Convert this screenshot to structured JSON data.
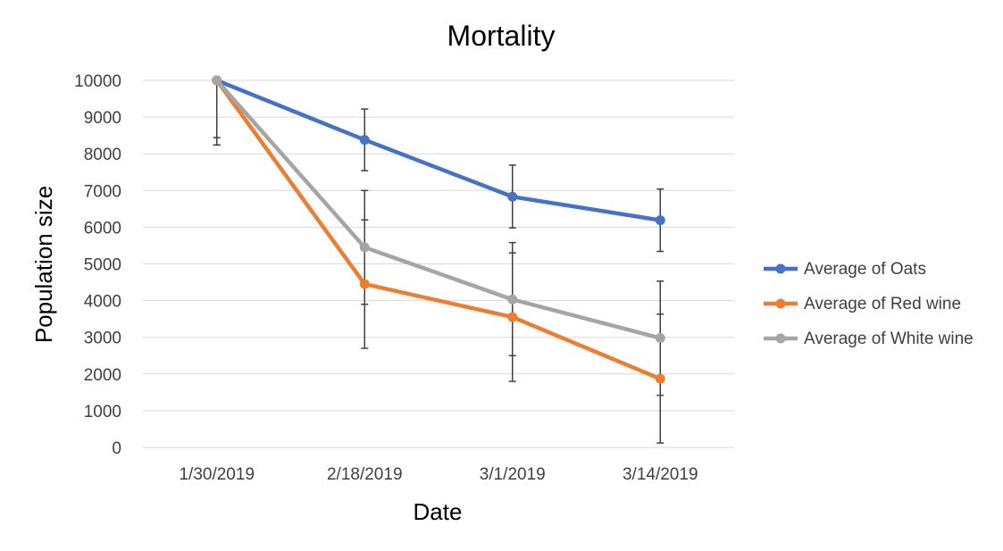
{
  "chart_data": {
    "type": "line",
    "title": "Mortality",
    "xlabel": "Date",
    "ylabel": "Population size",
    "categories": [
      "1/30/2019",
      "2/18/2019",
      "3/1/2019",
      "3/14/2019"
    ],
    "ylim": [
      0,
      10000
    ],
    "yticks": [
      0,
      1000,
      2000,
      3000,
      4000,
      5000,
      6000,
      7000,
      8000,
      9000,
      10000
    ],
    "grid": true,
    "legend_position": "right",
    "series": [
      {
        "name": "Average of Oats",
        "color": "#4472C4",
        "values": [
          10000,
          8380,
          6830,
          6190
        ],
        "error_low": [
          8440,
          7540,
          5980,
          5340
        ],
        "error_high": [
          10000,
          9220,
          7690,
          7040
        ]
      },
      {
        "name": "Average of Red wine",
        "color": "#ED7D31",
        "values": [
          10000,
          4450,
          3550,
          1870
        ],
        "error_low": [
          8240,
          2700,
          1800,
          120
        ],
        "error_high": [
          10000,
          6200,
          5300,
          3630
        ]
      },
      {
        "name": "Average of White wine",
        "color": "#A5A5A5",
        "values": [
          10000,
          5450,
          4030,
          2980
        ],
        "error_low": [
          8240,
          3900,
          2500,
          1420
        ],
        "error_high": [
          10000,
          7000,
          5580,
          4530
        ]
      }
    ]
  }
}
